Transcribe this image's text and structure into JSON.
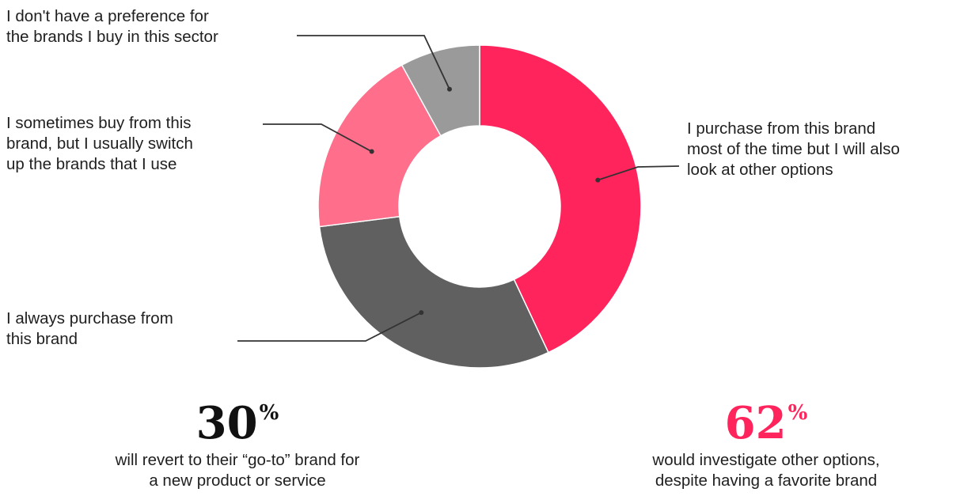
{
  "chart_data": {
    "type": "pie",
    "donut": true,
    "title": "",
    "slices": [
      {
        "label": "I purchase from this brand most of the time but I will also look at other options",
        "value": 43,
        "color": "#FF245C"
      },
      {
        "label": "I always purchase from this brand",
        "value": 30,
        "color": "#606060"
      },
      {
        "label": "I sometimes buy from this brand, but I usually switch up the brands that I use",
        "value": 19,
        "color": "#FF6E8A"
      },
      {
        "label": "I don't have a preference for the brands I buy in this sector",
        "value": 8,
        "color": "#9A9A9A"
      }
    ],
    "legend": "callout-labels"
  },
  "labels": {
    "no_preference": [
      "I don't have a preference for",
      "the brands I buy in this sector"
    ],
    "sometimes": [
      "I sometimes buy from this",
      "brand, but I usually switch",
      "up the brands that I use"
    ],
    "most_time": [
      "I purchase from this brand",
      "most of the time but I will also",
      "look at other options"
    ],
    "always": [
      "I always purchase from",
      "this brand"
    ]
  },
  "stats": [
    {
      "value": "30",
      "suffix": "%",
      "color": "#111111",
      "desc": [
        "will revert to their “go-to” brand for",
        "a new product or service"
      ]
    },
    {
      "value": "62",
      "suffix": "%",
      "color": "#FF245C",
      "desc": [
        "would investigate other options,",
        "despite having a favorite brand"
      ]
    }
  ]
}
